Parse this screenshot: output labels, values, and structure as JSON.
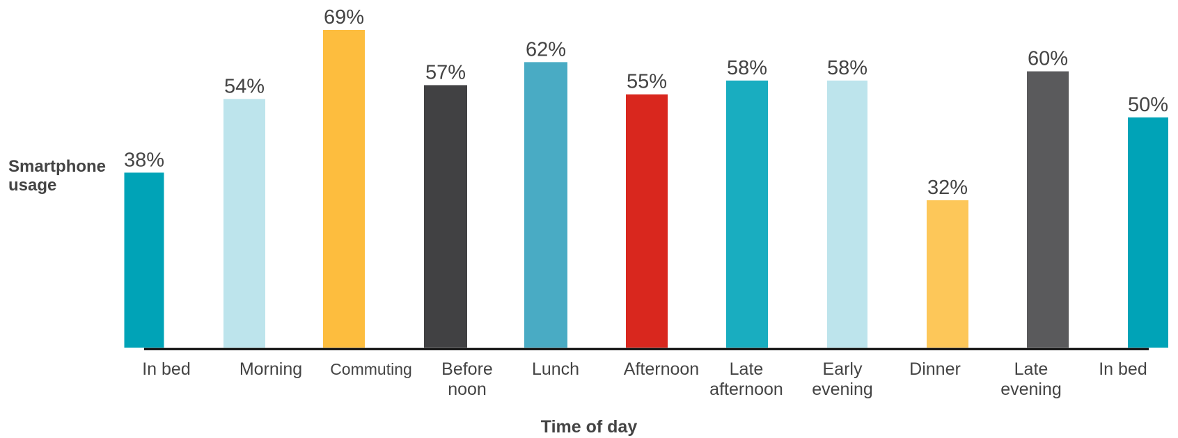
{
  "chart_data": {
    "type": "bar",
    "ylabel_lines": [
      "Smartphone",
      "usage"
    ],
    "xlabel": "Time of day",
    "categories": [
      [
        "In bed"
      ],
      [
        "Morning"
      ],
      [
        "Commuting"
      ],
      [
        "Before",
        "noon"
      ],
      [
        "Lunch"
      ],
      [
        "Afternoon"
      ],
      [
        "Late",
        "afternoon"
      ],
      [
        "Early",
        "evening"
      ],
      [
        "Dinner"
      ],
      [
        "Late",
        "evening"
      ],
      [
        "In bed"
      ]
    ],
    "values": [
      38,
      54,
      69,
      57,
      62,
      55,
      58,
      58,
      32,
      60,
      50
    ],
    "value_labels": [
      "38%",
      "54%",
      "69%",
      "57%",
      "62%",
      "55%",
      "58%",
      "58%",
      "32%",
      "60%",
      "50%"
    ],
    "colors": [
      "#00a3b7",
      "#bde4ec",
      "#fdbd3e",
      "#414143",
      "#49abc4",
      "#d9271e",
      "#19adc0",
      "#bde4ec",
      "#fdc759",
      "#5a5a5c",
      "#00a3b7"
    ],
    "ylim": [
      0,
      69
    ],
    "grid": false,
    "legend": false
  }
}
